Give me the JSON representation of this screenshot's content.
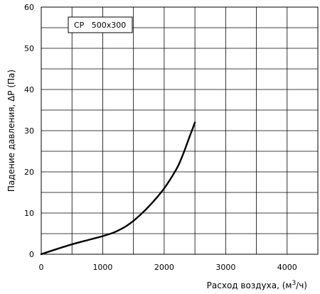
{
  "chart_data": {
    "type": "line",
    "legend_label": "CP   500x300",
    "legend_position": "top-left",
    "xlabel_main": "Расход воздуха, (м",
    "xlabel_sup": "3",
    "xlabel_tail": "/ч)",
    "ylabel": "Падение давления, ΔP (Па)",
    "xlim": [
      0,
      4500
    ],
    "ylim": [
      0,
      60
    ],
    "x_ticks": [
      0,
      1000,
      2000,
      3000,
      4000
    ],
    "x_tick_labels": [
      "0",
      "1000",
      "2000",
      "3000",
      "4000"
    ],
    "x_minor_grid": [
      500,
      1500,
      2500,
      3500,
      4500
    ],
    "y_ticks": [
      0,
      10,
      20,
      30,
      40,
      50,
      60
    ],
    "y_tick_labels": [
      "0",
      "10",
      "20",
      "30",
      "40",
      "50",
      "60"
    ],
    "y_minor_grid": [
      5,
      15,
      25,
      35,
      45,
      55
    ],
    "grid": true,
    "colors": {
      "line": "#000000",
      "grid": "#000000"
    },
    "series": [
      {
        "x": [
          0,
          200,
          500,
          800,
          1000,
          1200,
          1400,
          1600,
          1800,
          2000,
          2200,
          2300,
          2400,
          2500
        ],
        "values": [
          0,
          1,
          2.4,
          3.6,
          4.4,
          5.4,
          7,
          9.4,
          12.4,
          16,
          20.7,
          24,
          28,
          32
        ]
      }
    ]
  }
}
